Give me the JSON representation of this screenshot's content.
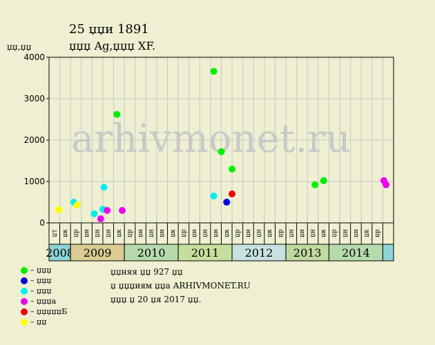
{
  "header": {
    "title": "25  џџи 1891",
    "subtitle": "џџџ Ag,џџџ XF.",
    "unit": "џџ,џџ"
  },
  "chart_data": {
    "type": "scatter",
    "ylim": [
      0,
      4000
    ],
    "yticks": [
      0,
      1000,
      2000,
      3000,
      4000
    ],
    "grid": true,
    "watermark": "arhivmonet.ru",
    "x_slots": [
      "џт",
      "џк",
      "џр",
      "џн",
      "џн",
      "џн",
      "џк",
      "џр",
      "џн",
      "џн",
      "џн",
      "џк",
      "џр",
      "џн",
      "џн",
      "џн",
      "џк",
      "џр",
      "џн",
      "џн",
      "џк",
      "џр",
      "џн",
      "џн",
      "џн",
      "џк",
      "џр",
      "џн",
      "џн",
      "џк",
      "џр"
    ],
    "years": [
      {
        "label": "2008",
        "start": 0,
        "end": 2,
        "color": "#8fd3d7"
      },
      {
        "label": "2009",
        "start": 2,
        "end": 7,
        "color": "#d9cc93"
      },
      {
        "label": "2010",
        "start": 7,
        "end": 12,
        "color": "#b5dbac"
      },
      {
        "label": "2011",
        "start": 12,
        "end": 17,
        "color": "#c7df9e"
      },
      {
        "label": "2012",
        "start": 17,
        "end": 22,
        "color": "#c6e1df"
      },
      {
        "label": "2013",
        "start": 22,
        "end": 26,
        "color": "#c0d99e"
      },
      {
        "label": "2014",
        "start": 26,
        "end": 31,
        "color": "#b5dbac"
      },
      {
        "label": "",
        "start": 31,
        "end": 32,
        "color": "#8fd3d7"
      }
    ],
    "series": [
      {
        "key": "green",
        "color": "#00ee00",
        "points": [
          [
            5.8,
            2620
          ],
          [
            14.8,
            3660
          ],
          [
            15.5,
            1720
          ],
          [
            16.5,
            1300
          ],
          [
            24.2,
            920
          ],
          [
            25.0,
            1020
          ]
        ]
      },
      {
        "key": "blue",
        "color": "#0000dd",
        "points": [
          [
            16.0,
            500
          ]
        ]
      },
      {
        "key": "cyan",
        "color": "#00eeee",
        "points": [
          [
            1.8,
            500
          ],
          [
            3.7,
            220
          ],
          [
            4.6,
            860
          ],
          [
            4.5,
            330
          ],
          [
            14.8,
            650
          ]
        ]
      },
      {
        "key": "magenta",
        "color": "#ee00ee",
        "points": [
          [
            4.3,
            100
          ],
          [
            4.9,
            300
          ],
          [
            6.3,
            300
          ],
          [
            30.6,
            1020
          ],
          [
            30.8,
            920
          ]
        ]
      },
      {
        "key": "red",
        "color": "#ee0000",
        "points": [
          [
            16.5,
            700
          ]
        ]
      },
      {
        "key": "yellow",
        "color": "#ffff00",
        "points": [
          [
            0.4,
            320
          ],
          [
            2.1,
            430
          ]
        ]
      }
    ]
  },
  "legend": [
    {
      "label": "– џџџ",
      "color": "#00ee00"
    },
    {
      "label": "– џџџ",
      "color": "#0000dd"
    },
    {
      "label": "– џџџ",
      "color": "#00eeee"
    },
    {
      "label": "– џџџа",
      "color": "#ee00ee"
    },
    {
      "label": "– џџџџџБ",
      "color": "#ee0000"
    },
    {
      "label": "– џџ",
      "color": "#ffff00"
    }
  ],
  "notes": [
    "џџняя џџ 927 џџ",
    "џ џџџиям џџа ARHIVMONET.RU",
    "џџџ џ 20 џя 2017 џџ."
  ]
}
